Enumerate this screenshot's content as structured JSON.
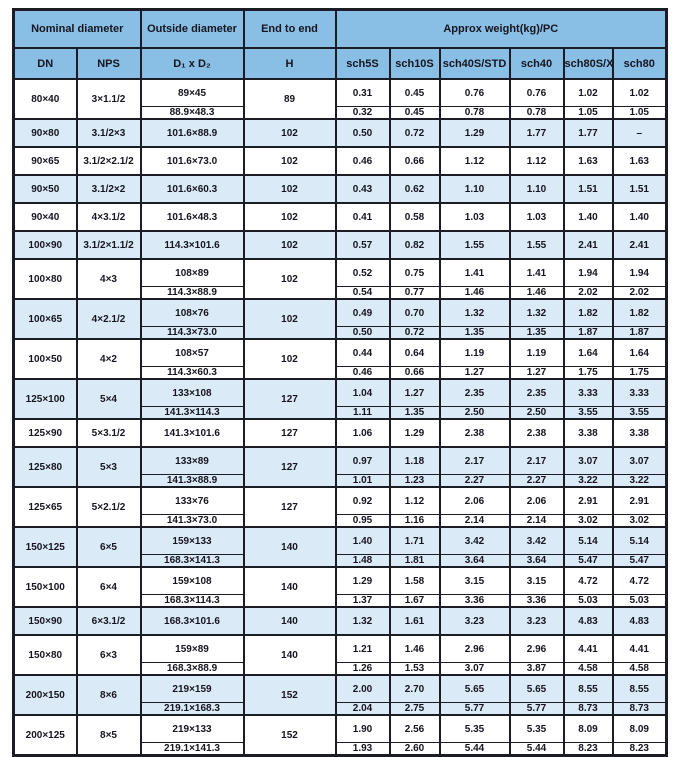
{
  "colors": {
    "header_bg": "#89bfe5",
    "row_highlight": "#dbeaf7",
    "border": "#1c1c26",
    "text": "#15151f"
  },
  "table": {
    "header": {
      "nominal_diameter": "Nominal diameter",
      "outside_diameter": "Outside diameter",
      "end_to_end": "End to end",
      "approx_weight": "Approx weight(kg)/PC",
      "dn": "DN",
      "nps": "NPS",
      "d1xd2": "D₁ x D₂",
      "h": "H",
      "sch": [
        "sch5S",
        "sch10S",
        "sch40S/STD",
        "sch40",
        "sch80S/XS",
        "sch80"
      ]
    },
    "rows": [
      {
        "dn": "80×40",
        "nps": "3×1.1/2",
        "h": "89",
        "highlight": false,
        "subrows": [
          {
            "od": "89×45",
            "weights": [
              "0.31",
              "0.45",
              "0.76",
              "0.76",
              "1.02",
              "1.02"
            ]
          },
          {
            "od": "88.9×48.3",
            "weights": [
              "0.32",
              "0.45",
              "0.78",
              "0.78",
              "1.05",
              "1.05"
            ]
          }
        ]
      },
      {
        "dn": "90×80",
        "nps": "3.1/2×3",
        "h": "102",
        "highlight": true,
        "subrows": [
          {
            "od": "101.6×88.9",
            "weights": [
              "0.50",
              "0.72",
              "1.29",
              "1.77",
              "1.77",
              "–"
            ]
          }
        ]
      },
      {
        "dn": "90×65",
        "nps": "3.1/2×2.1/2",
        "h": "102",
        "highlight": false,
        "subrows": [
          {
            "od": "101.6×73.0",
            "weights": [
              "0.46",
              "0.66",
              "1.12",
              "1.12",
              "1.63",
              "1.63"
            ]
          }
        ]
      },
      {
        "dn": "90×50",
        "nps": "3.1/2×2",
        "h": "102",
        "highlight": true,
        "subrows": [
          {
            "od": "101.6×60.3",
            "weights": [
              "0.43",
              "0.62",
              "1.10",
              "1.10",
              "1.51",
              "1.51"
            ]
          }
        ]
      },
      {
        "dn": "90×40",
        "nps": "4×3.1/2",
        "h": "102",
        "highlight": false,
        "subrows": [
          {
            "od": "101.6×48.3",
            "weights": [
              "0.41",
              "0.58",
              "1.03",
              "1.03",
              "1.40",
              "1.40"
            ]
          }
        ]
      },
      {
        "dn": "100×90",
        "nps": "3.1/2×1.1/2",
        "h": "102",
        "highlight": true,
        "subrows": [
          {
            "od": "114.3×101.6",
            "weights": [
              "0.57",
              "0.82",
              "1.55",
              "1.55",
              "2.41",
              "2.41"
            ]
          }
        ]
      },
      {
        "dn": "100×80",
        "nps": "4×3",
        "h": "102",
        "highlight": false,
        "subrows": [
          {
            "od": "108×89",
            "weights": [
              "0.52",
              "0.75",
              "1.41",
              "1.41",
              "1.94",
              "1.94"
            ]
          },
          {
            "od": "114.3×88.9",
            "weights": [
              "0.54",
              "0.77",
              "1.46",
              "1.46",
              "2.02",
              "2.02"
            ]
          }
        ]
      },
      {
        "dn": "100×65",
        "nps": "4×2.1/2",
        "h": "102",
        "highlight": true,
        "subrows": [
          {
            "od": "108×76",
            "weights": [
              "0.49",
              "0.70",
              "1.32",
              "1.32",
              "1.82",
              "1.82"
            ]
          },
          {
            "od": "114.3×73.0",
            "weights": [
              "0.50",
              "0.72",
              "1.35",
              "1.35",
              "1.87",
              "1.87"
            ]
          }
        ]
      },
      {
        "dn": "100×50",
        "nps": "4×2",
        "h": "102",
        "highlight": false,
        "subrows": [
          {
            "od": "108×57",
            "weights": [
              "0.44",
              "0.64",
              "1.19",
              "1.19",
              "1.64",
              "1.64"
            ]
          },
          {
            "od": "114.3×60.3",
            "weights": [
              "0.46",
              "0.66",
              "1.27",
              "1.27",
              "1.75",
              "1.75"
            ]
          }
        ]
      },
      {
        "dn": "125×100",
        "nps": "5×4",
        "h": "127",
        "highlight": true,
        "subrows": [
          {
            "od": "133×108",
            "weights": [
              "1.04",
              "1.27",
              "2.35",
              "2.35",
              "3.33",
              "3.33"
            ]
          },
          {
            "od": "141.3×114.3",
            "weights": [
              "1.11",
              "1.35",
              "2.50",
              "2.50",
              "3.55",
              "3.55"
            ]
          }
        ]
      },
      {
        "dn": "125×90",
        "nps": "5×3.1/2",
        "h": "127",
        "highlight": false,
        "subrows": [
          {
            "od": "141.3×101.6",
            "weights": [
              "1.06",
              "1.29",
              "2.38",
              "2.38",
              "3.38",
              "3.38"
            ]
          }
        ]
      },
      {
        "dn": "125×80",
        "nps": "5×3",
        "h": "127",
        "highlight": true,
        "subrows": [
          {
            "od": "133×89",
            "weights": [
              "0.97",
              "1.18",
              "2.17",
              "2.17",
              "3.07",
              "3.07"
            ]
          },
          {
            "od": "141.3×88.9",
            "weights": [
              "1.01",
              "1.23",
              "2.27",
              "2.27",
              "3.22",
              "3.22"
            ]
          }
        ]
      },
      {
        "dn": "125×65",
        "nps": "5×2.1/2",
        "h": "127",
        "highlight": false,
        "subrows": [
          {
            "od": "133×76",
            "weights": [
              "0.92",
              "1.12",
              "2.06",
              "2.06",
              "2.91",
              "2.91"
            ]
          },
          {
            "od": "141.3×73.0",
            "weights": [
              "0.95",
              "1.16",
              "2.14",
              "2.14",
              "3.02",
              "3.02"
            ]
          }
        ]
      },
      {
        "dn": "150×125",
        "nps": "6×5",
        "h": "140",
        "highlight": true,
        "subrows": [
          {
            "od": "159×133",
            "weights": [
              "1.40",
              "1.71",
              "3.42",
              "3.42",
              "5.14",
              "5.14"
            ]
          },
          {
            "od": "168.3×141.3",
            "weights": [
              "1.48",
              "1.81",
              "3.64",
              "3.64",
              "5.47",
              "5.47"
            ]
          }
        ]
      },
      {
        "dn": "150×100",
        "nps": "6×4",
        "h": "140",
        "highlight": false,
        "subrows": [
          {
            "od": "159×108",
            "weights": [
              "1.29",
              "1.58",
              "3.15",
              "3.15",
              "4.72",
              "4.72"
            ]
          },
          {
            "od": "168.3×114.3",
            "weights": [
              "1.37",
              "1.67",
              "3.36",
              "3.36",
              "5.03",
              "5.03"
            ]
          }
        ]
      },
      {
        "dn": "150×90",
        "nps": "6×3.1/2",
        "h": "140",
        "highlight": true,
        "subrows": [
          {
            "od": "168.3×101.6",
            "weights": [
              "1.32",
              "1.61",
              "3.23",
              "3.23",
              "4.83",
              "4.83"
            ]
          }
        ]
      },
      {
        "dn": "150×80",
        "nps": "6×3",
        "h": "140",
        "highlight": false,
        "subrows": [
          {
            "od": "159×89",
            "weights": [
              "1.21",
              "1.46",
              "2.96",
              "2.96",
              "4.41",
              "4.41"
            ]
          },
          {
            "od": "168.3×88.9",
            "weights": [
              "1.26",
              "1.53",
              "3.07",
              "3.87",
              "4.58",
              "4.58"
            ]
          }
        ]
      },
      {
        "dn": "200×150",
        "nps": "8×6",
        "h": "152",
        "highlight": true,
        "subrows": [
          {
            "od": "219×159",
            "weights": [
              "2.00",
              "2.70",
              "5.65",
              "5.65",
              "8.55",
              "8.55"
            ]
          },
          {
            "od": "219.1×168.3",
            "weights": [
              "2.04",
              "2.75",
              "5.77",
              "5.77",
              "8.73",
              "8.73"
            ]
          }
        ]
      },
      {
        "dn": "200×125",
        "nps": "8×5",
        "h": "152",
        "highlight": false,
        "subrows": [
          {
            "od": "219×133",
            "weights": [
              "1.90",
              "2.56",
              "5.35",
              "5.35",
              "8.09",
              "8.09"
            ]
          },
          {
            "od": "219.1×141.3",
            "weights": [
              "1.93",
              "2.60",
              "5.44",
              "5.44",
              "8.23",
              "8.23"
            ]
          }
        ]
      }
    ]
  }
}
